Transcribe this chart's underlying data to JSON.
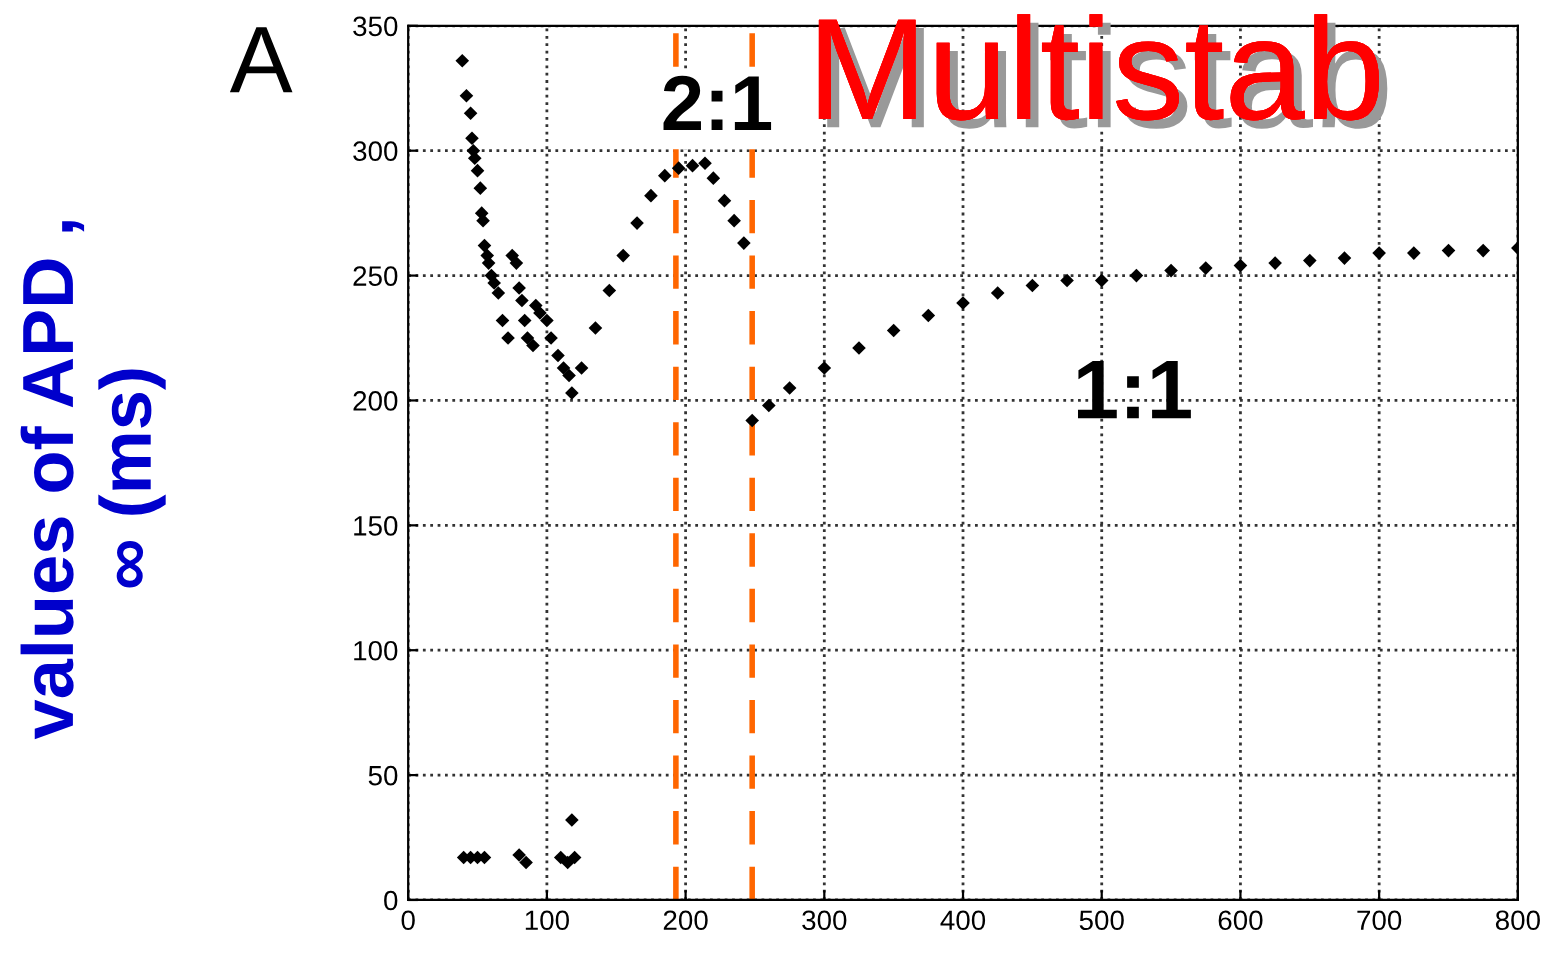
{
  "chart_data": {
    "type": "scatter",
    "title": "Multistab",
    "ylabel": "values of APD ,\n∞ (ms)",
    "annotations": [
      "A",
      "2:1",
      "1:1"
    ],
    "series": [
      {
        "color": "#000000",
        "x": [
          39,
          42,
          45,
          46,
          47,
          48,
          50,
          52,
          53,
          54,
          55,
          57,
          58,
          60,
          62,
          65,
          68,
          72,
          75,
          78,
          80,
          82,
          84,
          86,
          90,
          92,
          95,
          100,
          103,
          108,
          112,
          116,
          118,
          125,
          135,
          145,
          155,
          165,
          175,
          185,
          195,
          205,
          214,
          220,
          228,
          235,
          242,
          40,
          45,
          50,
          55,
          80,
          85,
          110,
          115,
          118,
          120,
          248,
          260,
          275,
          300,
          325,
          350,
          375,
          400,
          425,
          450,
          475,
          500,
          525,
          550,
          575,
          600,
          625,
          650,
          675,
          700,
          725,
          750,
          775,
          800
        ],
        "values": [
          336,
          322,
          315,
          305,
          300,
          297,
          292,
          285,
          275,
          272,
          262,
          258,
          255,
          250,
          247,
          243,
          232,
          225,
          258,
          255,
          245,
          240,
          232,
          225,
          222,
          238,
          235,
          232,
          225,
          218,
          213,
          210,
          203,
          213,
          229,
          244,
          258,
          271,
          282,
          290,
          293,
          294,
          295,
          289,
          280,
          272,
          263,
          17,
          17,
          17,
          17,
          18,
          15,
          17,
          15,
          32,
          17,
          192,
          198,
          205,
          213,
          221,
          228,
          234,
          239,
          243,
          246,
          248,
          248,
          250,
          252,
          253,
          254,
          255,
          256,
          257,
          259,
          259,
          260,
          260,
          261
        ]
      }
    ],
    "marker": "diamond",
    "ref_lines": [
      {
        "axis": "x",
        "value": 193,
        "color": "#ff6600",
        "line_style": "dashed"
      },
      {
        "axis": "x",
        "value": 248,
        "color": "#ff6600",
        "line_style": "dashed"
      }
    ],
    "xlim": [
      0,
      800
    ],
    "xticks": [
      0,
      100,
      200,
      300,
      400,
      500,
      600,
      700,
      800
    ],
    "ylim": [
      0,
      350
    ],
    "yticks": [
      0,
      50,
      100,
      150,
      200,
      250,
      300,
      350
    ],
    "grid": true
  }
}
